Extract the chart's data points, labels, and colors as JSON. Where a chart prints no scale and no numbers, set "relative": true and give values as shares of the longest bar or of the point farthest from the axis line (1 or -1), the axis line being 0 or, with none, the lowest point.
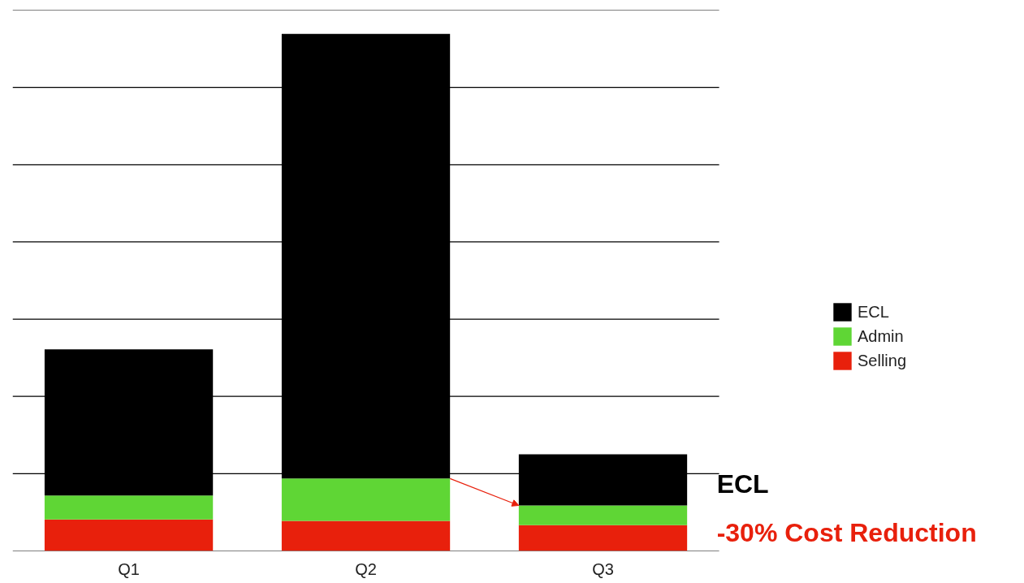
{
  "chart_data": {
    "type": "bar",
    "stacked": true,
    "relative": true,
    "categories": [
      "Q1",
      "Q2",
      "Q3"
    ],
    "series": [
      {
        "name": "Selling",
        "color": "#e8200c",
        "values": [
          0.061,
          0.058,
          0.05
        ]
      },
      {
        "name": "Admin",
        "color": "#5fd635",
        "values": [
          0.046,
          0.082,
          0.038
        ]
      },
      {
        "name": "ECL",
        "color": "#000000",
        "values": [
          0.283,
          0.86,
          0.099
        ]
      }
    ],
    "annotations": [
      "ECL",
      "-30% Cost Reduction"
    ],
    "grid": "y",
    "legend": "right",
    "tick_labels": "x"
  }
}
